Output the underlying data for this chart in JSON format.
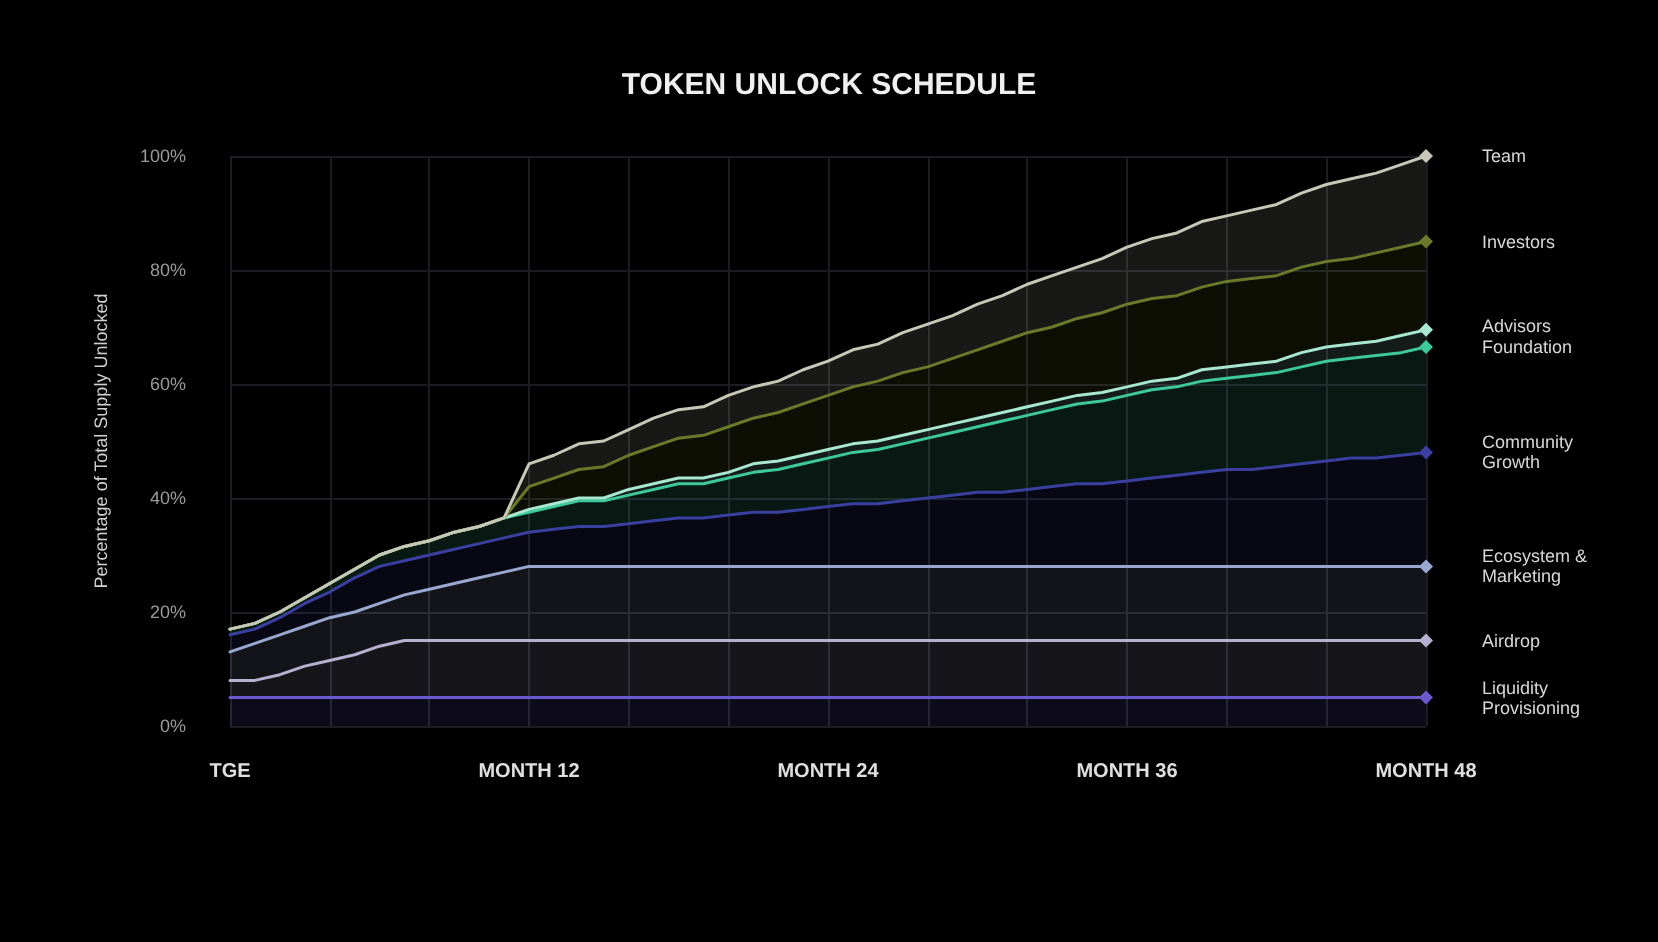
{
  "chart_data": {
    "type": "area",
    "stacked": true,
    "title": "TOKEN UNLOCK SCHEDULE",
    "ylabel": "Percentage of Total Supply Unlocked",
    "categories": [
      "TGE",
      null,
      null,
      null,
      null,
      null,
      null,
      null,
      null,
      null,
      null,
      null,
      "MONTH 12",
      null,
      null,
      null,
      null,
      null,
      null,
      null,
      null,
      null,
      null,
      null,
      "MONTH 24",
      null,
      null,
      null,
      null,
      null,
      null,
      null,
      null,
      null,
      null,
      null,
      "MONTH 36",
      null,
      null,
      null,
      null,
      null,
      null,
      null,
      null,
      null,
      null,
      null,
      "MONTH 48"
    ],
    "series": [
      {
        "name": "Liquidity Provisioning",
        "color": "#6a5acd",
        "values": [
          5,
          5,
          5,
          5,
          5,
          5,
          5,
          5,
          5,
          5,
          5,
          5,
          5,
          5,
          5,
          5,
          5,
          5,
          5,
          5,
          5,
          5,
          5,
          5,
          5,
          5,
          5,
          5,
          5,
          5,
          5,
          5,
          5,
          5,
          5,
          5,
          5,
          5,
          5,
          5,
          5,
          5,
          5,
          5,
          5,
          5,
          5,
          5,
          5
        ]
      },
      {
        "name": "Airdrop",
        "color": "#b8b0d0",
        "values": [
          3,
          3,
          4,
          5.5,
          6.5,
          7.5,
          9,
          10,
          10,
          10,
          10,
          10,
          10,
          10,
          10,
          10,
          10,
          10,
          10,
          10,
          10,
          10,
          10,
          10,
          10,
          10,
          10,
          10,
          10,
          10,
          10,
          10,
          10,
          10,
          10,
          10,
          10,
          10,
          10,
          10,
          10,
          10,
          10,
          10,
          10,
          10,
          10,
          10,
          10
        ]
      },
      {
        "name": "Ecosystem & Marketing",
        "color": "#9aa8d0",
        "values": [
          5,
          6.5,
          7,
          7,
          7.5,
          7.5,
          7.5,
          8,
          9,
          10,
          11,
          12,
          13,
          13,
          13,
          13,
          13,
          13,
          13,
          13,
          13,
          13,
          13,
          13,
          13,
          13,
          13,
          13,
          13,
          13,
          13,
          13,
          13,
          13,
          13,
          13,
          13,
          13,
          13,
          13,
          13,
          13,
          13,
          13,
          13,
          13,
          13,
          13,
          13
        ]
      },
      {
        "name": "Community Growth",
        "color": "#3a3fa0",
        "values": [
          3,
          2.5,
          3,
          4,
          4.5,
          6,
          6.5,
          6,
          6,
          6,
          6,
          6,
          6,
          6.5,
          7,
          7,
          7.5,
          8,
          8.5,
          8.5,
          9,
          9.5,
          9.5,
          10,
          10.5,
          11,
          11,
          11.5,
          12,
          12.5,
          13,
          13,
          13.5,
          14,
          14.5,
          14.5,
          15,
          15.5,
          16,
          16.5,
          17,
          17,
          17.5,
          18,
          18.5,
          19,
          19,
          19.5,
          20
        ]
      },
      {
        "name": "Foundation",
        "color": "#3ec99a",
        "values": [
          1,
          1,
          1,
          1,
          1.5,
          1.5,
          2,
          2.5,
          2.5,
          3,
          3,
          3.5,
          3.5,
          4,
          4.5,
          4.5,
          5,
          5.5,
          6,
          6,
          6.5,
          7,
          7.5,
          8,
          8.5,
          9,
          9.5,
          10,
          10.5,
          11,
          11.5,
          12.5,
          13,
          13.5,
          14,
          14.5,
          15,
          15.5,
          15.5,
          16,
          16,
          16.5,
          16.5,
          17,
          17.5,
          17.5,
          18,
          18,
          18.5
        ]
      },
      {
        "name": "Advisors",
        "color": "#a8e8d0",
        "values": [
          0,
          0,
          0,
          0,
          0,
          0,
          0,
          0,
          0,
          0,
          0,
          0,
          0.5,
          0.5,
          0.5,
          0.5,
          1,
          1,
          1,
          1,
          1,
          1.5,
          1.5,
          1.5,
          1.5,
          1.5,
          1.5,
          1.5,
          1.5,
          1.5,
          1.5,
          1.5,
          1.5,
          1.5,
          1.5,
          1.5,
          1.5,
          1.5,
          1.5,
          2,
          2,
          2,
          2,
          2.5,
          2.5,
          2.5,
          2.5,
          3,
          3
        ]
      },
      {
        "name": "Investors",
        "color": "#6b7a2a",
        "values": [
          0,
          0,
          0,
          0,
          0,
          0,
          0,
          0,
          0,
          0,
          0,
          0,
          4,
          4.5,
          5,
          5.5,
          6,
          6.5,
          7,
          7.5,
          8,
          8,
          8.5,
          9,
          9.5,
          10,
          10.5,
          11,
          11,
          11.5,
          12,
          12.5,
          13,
          13,
          13.5,
          14,
          14.5,
          14.5,
          14.5,
          14.5,
          15,
          15,
          15,
          15,
          15,
          15,
          15.5,
          15.5,
          15.5
        ]
      },
      {
        "name": "Team",
        "color": "#c8c8b8",
        "values": [
          0,
          0,
          0,
          0,
          0,
          0,
          0,
          0,
          0,
          0,
          0,
          0,
          4,
          4,
          4.5,
          4.5,
          4.5,
          5,
          5,
          5,
          5.5,
          5.5,
          5.5,
          6,
          6,
          6.5,
          6.5,
          7,
          7.5,
          7.5,
          8,
          8,
          8.5,
          9,
          9,
          9.5,
          10,
          10.5,
          11,
          11.5,
          11.5,
          12,
          12.5,
          13,
          13.5,
          14,
          14,
          14.5,
          15
        ]
      }
    ],
    "ylim": [
      0,
      100
    ],
    "yticks": [
      {
        "value": 0,
        "label": "0%"
      },
      {
        "value": 20,
        "label": "20%"
      },
      {
        "value": 40,
        "label": "40%"
      },
      {
        "value": 60,
        "label": "60%"
      },
      {
        "value": 80,
        "label": "80%"
      },
      {
        "value": 100,
        "label": "100%"
      }
    ],
    "grid": true,
    "legend": false,
    "line_style": "solid"
  }
}
